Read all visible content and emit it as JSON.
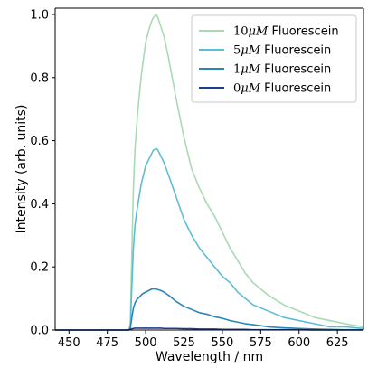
{
  "chart_data": {
    "type": "line",
    "xlabel": "Wavelength / nm",
    "ylabel": "Intensity (arb. units)",
    "xlim": [
      441,
      642
    ],
    "ylim": [
      0.0,
      1.02
    ],
    "x_ticks": [
      450,
      475,
      500,
      525,
      550,
      575,
      600,
      625
    ],
    "y_ticks": [
      0.0,
      0.2,
      0.4,
      0.6,
      0.8,
      1.0
    ],
    "x_tick_labels": [
      "450",
      "475",
      "500",
      "525",
      "550",
      "575",
      "600",
      "625"
    ],
    "y_tick_labels": [
      "0.0",
      "0.2",
      "0.4",
      "0.6",
      "0.8",
      "1.0"
    ],
    "grid": false,
    "legend_position": "top-right",
    "x": [
      441,
      450,
      460,
      470,
      480,
      489,
      490,
      491,
      492,
      493,
      494,
      495,
      496,
      497,
      498,
      500,
      502,
      504,
      505,
      507,
      508,
      510,
      512,
      515,
      520,
      525,
      530,
      535,
      540,
      545,
      550,
      555,
      560,
      565,
      570,
      575,
      580,
      590,
      600,
      610,
      620,
      630,
      642
    ],
    "series": [
      {
        "name": "10μM Fluorescein",
        "color": "#a8dbb4",
        "values": [
          0.0,
          0.0,
          0.0,
          0.0,
          0.0,
          0.0,
          0.02,
          0.25,
          0.45,
          0.57,
          0.64,
          0.7,
          0.75,
          0.8,
          0.84,
          0.91,
          0.95,
          0.98,
          0.99,
          1.0,
          0.99,
          0.96,
          0.93,
          0.86,
          0.73,
          0.61,
          0.51,
          0.45,
          0.4,
          0.36,
          0.31,
          0.26,
          0.22,
          0.18,
          0.15,
          0.13,
          0.11,
          0.08,
          0.06,
          0.04,
          0.03,
          0.02,
          0.01
        ]
      },
      {
        "name": "5μM Fluorescein",
        "color": "#5ebdd6",
        "values": [
          0.0,
          0.0,
          0.0,
          0.0,
          0.0,
          0.0,
          0.01,
          0.14,
          0.26,
          0.33,
          0.37,
          0.4,
          0.43,
          0.46,
          0.48,
          0.52,
          0.54,
          0.56,
          0.57,
          0.575,
          0.57,
          0.55,
          0.53,
          0.49,
          0.42,
          0.35,
          0.3,
          0.26,
          0.23,
          0.2,
          0.17,
          0.15,
          0.12,
          0.1,
          0.08,
          0.07,
          0.06,
          0.04,
          0.03,
          0.02,
          0.01,
          0.01,
          0.005
        ]
      },
      {
        "name": "1μM Fluorescein",
        "color": "#2a86bd",
        "values": [
          0.0,
          0.0,
          0.0,
          0.0,
          0.0,
          0.0,
          0.005,
          0.04,
          0.07,
          0.085,
          0.095,
          0.1,
          0.105,
          0.11,
          0.115,
          0.12,
          0.125,
          0.13,
          0.13,
          0.13,
          0.128,
          0.125,
          0.12,
          0.11,
          0.09,
          0.075,
          0.065,
          0.055,
          0.05,
          0.042,
          0.037,
          0.03,
          0.025,
          0.02,
          0.017,
          0.014,
          0.01,
          0.007,
          0.005,
          0.003,
          0.002,
          0.001,
          0.001
        ]
      },
      {
        "name": "0μM Fluorescein",
        "color": "#1b3f8f",
        "values": [
          0.0,
          0.0,
          0.0,
          0.0,
          0.0,
          0.0,
          0.002,
          0.004,
          0.005,
          0.006,
          0.006,
          0.006,
          0.006,
          0.006,
          0.006,
          0.006,
          0.006,
          0.006,
          0.006,
          0.006,
          0.006,
          0.006,
          0.005,
          0.005,
          0.005,
          0.004,
          0.004,
          0.003,
          0.003,
          0.003,
          0.002,
          0.002,
          0.002,
          0.002,
          0.001,
          0.001,
          0.001,
          0.001,
          0.001,
          0.0,
          0.0,
          0.0,
          0.0
        ]
      }
    ],
    "legend": [
      {
        "prefix": "10",
        "unit": "μM",
        "suffix": " Fluorescein"
      },
      {
        "prefix": "5",
        "unit": "μM",
        "suffix": " Fluorescein"
      },
      {
        "prefix": "1",
        "unit": "μM",
        "suffix": " Fluorescein"
      },
      {
        "prefix": "0",
        "unit": "μM",
        "suffix": " Fluorescein"
      }
    ]
  }
}
